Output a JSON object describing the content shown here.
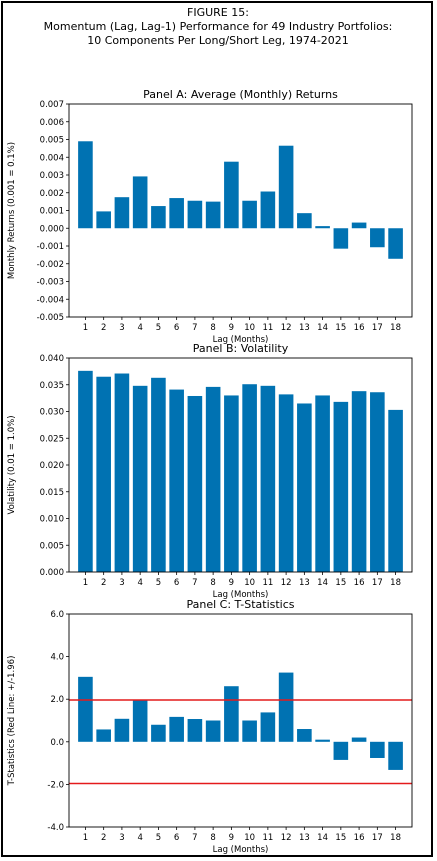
{
  "figure": {
    "title_lines": [
      "FIGURE 15:",
      "Momentum (Lag, Lag-1) Performance for 49 Industry Portfolios:",
      "10 Components Per Long/Short Leg, 1974-2021"
    ]
  },
  "chart_data": [
    {
      "type": "bar",
      "title": "Panel A: Average (Monthly) Returns",
      "xlabel": "Lag (Months)",
      "ylabel": "Monthly Returns (0.001 = 0.1%)",
      "categories": [
        "1",
        "2",
        "3",
        "4",
        "5",
        "6",
        "7",
        "8",
        "9",
        "10",
        "11",
        "12",
        "13",
        "14",
        "15",
        "16",
        "17",
        "18"
      ],
      "values": [
        0.0049,
        0.00095,
        0.00175,
        0.00292,
        0.00125,
        0.0017,
        0.00155,
        0.0015,
        0.00375,
        0.00155,
        0.00207,
        0.00465,
        0.00085,
        0.00012,
        -0.00115,
        0.00032,
        -0.00107,
        -0.00172
      ],
      "ylim": [
        -0.005,
        0.007
      ],
      "yticks": [
        -0.005,
        -0.004,
        -0.003,
        -0.002,
        -0.001,
        0.0,
        0.001,
        0.002,
        0.003,
        0.004,
        0.005,
        0.006,
        0.007
      ],
      "ytick_labels": [
        "-0.005",
        "-0.004",
        "-0.003",
        "-0.002",
        "-0.001",
        "0.000",
        "0.001",
        "0.002",
        "0.003",
        "0.004",
        "0.005",
        "0.006",
        "0.007"
      ],
      "bar_color": "#0072b2",
      "grid": false,
      "reference_lines": []
    },
    {
      "type": "bar",
      "title": "Panel B: Volatility",
      "xlabel": "Lag (Months)",
      "ylabel": "Volatility (0.01 = 1.0%)",
      "categories": [
        "1",
        "2",
        "3",
        "4",
        "5",
        "6",
        "7",
        "8",
        "9",
        "10",
        "11",
        "12",
        "13",
        "14",
        "15",
        "16",
        "17",
        "18"
      ],
      "values": [
        0.0376,
        0.0365,
        0.0371,
        0.0348,
        0.0363,
        0.0341,
        0.0329,
        0.0346,
        0.033,
        0.0351,
        0.0348,
        0.0332,
        0.0315,
        0.033,
        0.0318,
        0.0338,
        0.0336,
        0.0303
      ],
      "ylim": [
        0.0,
        0.04
      ],
      "yticks": [
        0.0,
        0.005,
        0.01,
        0.015,
        0.02,
        0.025,
        0.03,
        0.035,
        0.04
      ],
      "ytick_labels": [
        "0.000",
        "0.005",
        "0.010",
        "0.015",
        "0.020",
        "0.025",
        "0.030",
        "0.035",
        "0.040"
      ],
      "bar_color": "#0072b2",
      "grid": false,
      "reference_lines": []
    },
    {
      "type": "bar",
      "title": "Panel C: T-Statistics",
      "xlabel": "Lag (Months)",
      "ylabel": "T-Statistics (Red Line: +/-1.96)",
      "categories": [
        "1",
        "2",
        "3",
        "4",
        "5",
        "6",
        "7",
        "8",
        "9",
        "10",
        "11",
        "12",
        "13",
        "14",
        "15",
        "16",
        "17",
        "18"
      ],
      "values": [
        3.05,
        0.58,
        1.08,
        1.97,
        0.8,
        1.17,
        1.07,
        1.0,
        2.61,
        1.0,
        1.38,
        3.25,
        0.6,
        0.1,
        -0.85,
        0.2,
        -0.76,
        -1.32
      ],
      "ylim": [
        -4.0,
        6.0
      ],
      "yticks": [
        -4.0,
        -2.0,
        0.0,
        2.0,
        4.0,
        6.0
      ],
      "ytick_labels": [
        "-4.0",
        "-2.0",
        "0.0",
        "2.0",
        "4.0",
        "6.0"
      ],
      "bar_color": "#0072b2",
      "grid": false,
      "reference_lines": [
        {
          "value": 1.96,
          "color": "#e41a1c"
        },
        {
          "value": -1.96,
          "color": "#e41a1c"
        }
      ]
    }
  ]
}
